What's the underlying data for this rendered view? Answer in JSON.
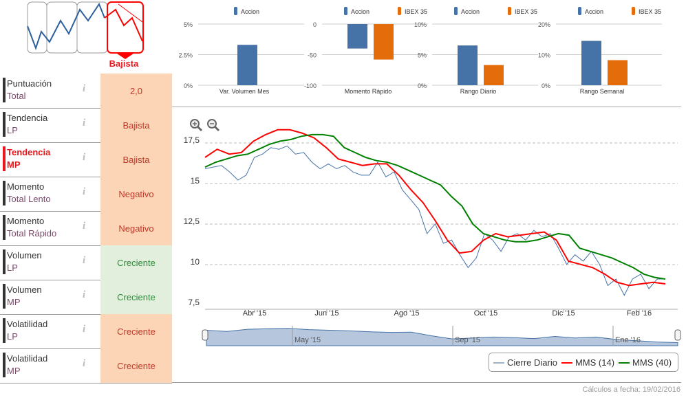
{
  "trend_widget": {
    "label": "Bajista"
  },
  "indicators": [
    {
      "l1": "Puntuación",
      "l2": "Total",
      "value": "2,0",
      "status": "neg",
      "highlight": false
    },
    {
      "l1": "Tendencia",
      "l2": "LP",
      "value": "Bajista",
      "status": "neg",
      "highlight": false
    },
    {
      "l1": "Tendencia",
      "l2": "MP",
      "value": "Bajista",
      "status": "neg",
      "highlight": true
    },
    {
      "l1": "Momento",
      "l2": "Total Lento",
      "value": "Negativo",
      "status": "neg",
      "highlight": false
    },
    {
      "l1": "Momento",
      "l2": "Total Rápido",
      "value": "Negativo",
      "status": "neg",
      "highlight": false
    },
    {
      "l1": "Volumen",
      "l2": "LP",
      "value": "Creciente",
      "status": "pos",
      "highlight": false
    },
    {
      "l1": "Volumen",
      "l2": "MP",
      "value": "Creciente",
      "status": "pos",
      "highlight": false
    },
    {
      "l1": "Volatilidad",
      "l2": "LP",
      "value": "Creciente",
      "status": "neg",
      "highlight": false
    },
    {
      "l1": "Volatilidad",
      "l2": "MP",
      "value": "Creciente",
      "status": "neg",
      "highlight": false
    }
  ],
  "info_glyph": "i",
  "colors": {
    "accion": "#4572a7",
    "ibex": "#e46c0a",
    "cierre": "#4572a7",
    "mms14": "#ff0000",
    "mms40": "#008000"
  },
  "chart_data": [
    {
      "type": "bar",
      "title": "Var. Volumen Mes",
      "legend": [
        "Accion"
      ],
      "categories": [
        "Var. Volumen Mes"
      ],
      "series": [
        {
          "name": "Accion",
          "values": [
            3.3
          ]
        }
      ],
      "ylim": [
        0,
        5
      ],
      "ticks": [
        "5%",
        "2.5%",
        "0%"
      ]
    },
    {
      "type": "bar",
      "title": "Momento Rápido",
      "legend": [
        "Accion",
        "IBEX 35"
      ],
      "categories": [
        "Momento Rápido"
      ],
      "series": [
        {
          "name": "Accion",
          "values": [
            -40
          ]
        },
        {
          "name": "IBEX 35",
          "values": [
            -58
          ]
        }
      ],
      "ylim": [
        -100,
        0
      ],
      "ticks": [
        "0",
        "-50",
        "-100"
      ]
    },
    {
      "type": "bar",
      "title": "Rango Diario",
      "legend": [
        "Accion",
        "IBEX 35"
      ],
      "categories": [
        "Rango Diario"
      ],
      "series": [
        {
          "name": "Accion",
          "values": [
            6.5
          ]
        },
        {
          "name": "IBEX 35",
          "values": [
            3.3
          ]
        }
      ],
      "ylim": [
        0,
        10
      ],
      "ticks": [
        "10%",
        "5%",
        "0%"
      ]
    },
    {
      "type": "bar",
      "title": "Rango Semanal",
      "legend": [
        "Accion",
        "IBEX 35"
      ],
      "categories": [
        "Rango Semanal"
      ],
      "series": [
        {
          "name": "Accion",
          "values": [
            14.5
          ]
        },
        {
          "name": "IBEX 35",
          "values": [
            8.2
          ]
        }
      ],
      "ylim": [
        0,
        20
      ],
      "ticks": [
        "20%",
        "10%",
        "0%"
      ]
    },
    {
      "type": "line",
      "ylim": [
        7.5,
        17.5
      ],
      "yticks": [
        "17,5",
        "15",
        "12,5",
        "10",
        "7,5"
      ],
      "xticks": [
        "Abr '15",
        "Jun '15",
        "Ago '15",
        "Oct '15",
        "Dic '15",
        "Feb '16"
      ],
      "series": [
        {
          "name": "Cierre Diario",
          "values": [
            15.7,
            15.8,
            15.9,
            15.5,
            15.0,
            15.3,
            16.4,
            16.6,
            17.0,
            16.9,
            17.1,
            16.6,
            16.7,
            16.1,
            15.7,
            16.0,
            15.7,
            15.9,
            15.5,
            15.3,
            15.3,
            16.1,
            15.2,
            15.5,
            14.4,
            13.8,
            13.2,
            11.7,
            12.3,
            11.1,
            11.3,
            10.4,
            9.6,
            10.2,
            11.7,
            11.3,
            10.6,
            11.5,
            11.7,
            11.3,
            11.9,
            11.5,
            11.7,
            10.8,
            9.8,
            10.4,
            10.0,
            10.6,
            9.8,
            8.5,
            8.9,
            7.9,
            8.9,
            9.2,
            8.3,
            8.9,
            8.9
          ]
        },
        {
          "name": "MMS (14)",
          "values": [
            16.4,
            16.9,
            16.6,
            16.7,
            17.4,
            17.8,
            18.1,
            18.1,
            17.9,
            17.6,
            17.0,
            16.3,
            16.1,
            15.9,
            16.0,
            16.0,
            15.3,
            14.4,
            13.6,
            12.5,
            11.3,
            10.5,
            10.6,
            11.3,
            11.7,
            11.5,
            11.6,
            11.7,
            11.8,
            11.3,
            10.0,
            9.8,
            9.6,
            9.2,
            8.7,
            8.5,
            8.6,
            8.7,
            8.6
          ]
        },
        {
          "name": "MMS (40)",
          "values": [
            15.8,
            16.1,
            16.3,
            16.5,
            16.6,
            16.9,
            17.2,
            17.4,
            17.5,
            17.7,
            17.8,
            17.8,
            17.7,
            17.0,
            16.7,
            16.4,
            16.2,
            16.1,
            15.9,
            15.6,
            15.3,
            15.0,
            14.7,
            14.0,
            13.4,
            12.3,
            11.7,
            11.5,
            11.3,
            11.2,
            11.2,
            11.3,
            11.5,
            11.7,
            11.6,
            10.8,
            10.6,
            10.4,
            10.2,
            9.9,
            9.6,
            9.2,
            9.0,
            8.9
          ]
        }
      ]
    },
    {
      "type": "area",
      "name": "navigator",
      "xticks": [
        "May '15",
        "Sep '15",
        "Ene '16"
      ]
    }
  ],
  "legend": [
    "Cierre Diario",
    "MMS (14)",
    "MMS (40)"
  ],
  "footer": "Cálculos a fecha: 19/02/2016"
}
